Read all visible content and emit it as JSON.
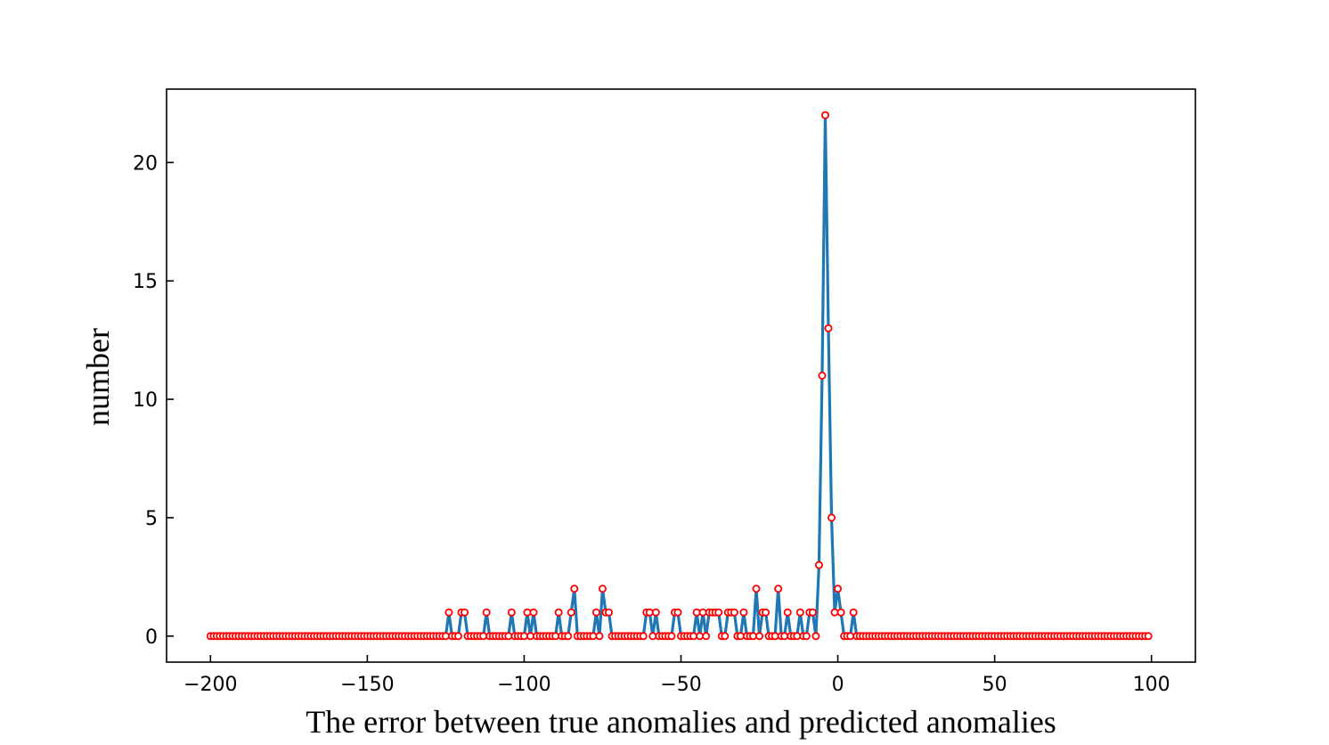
{
  "chart_data": {
    "type": "line",
    "title": "",
    "xlabel": "The error between true anomalies and predicted anomalies",
    "ylabel": "number",
    "xlim": [
      -214,
      114
    ],
    "ylim": [
      -1.1,
      23.1
    ],
    "xticks": [
      -200,
      -150,
      -100,
      -50,
      0,
      50,
      100
    ],
    "xtick_labels": [
      "−200",
      "−150",
      "−100",
      "−50",
      "0",
      "50",
      "100"
    ],
    "yticks": [
      0,
      5,
      10,
      15,
      20
    ],
    "ytick_labels": [
      "0",
      "5",
      "10",
      "15",
      "20"
    ],
    "grid": false,
    "legend": "none",
    "x_start": -200,
    "x_step": 1,
    "values": [
      0,
      0,
      0,
      0,
      0,
      0,
      0,
      0,
      0,
      0,
      0,
      0,
      0,
      0,
      0,
      0,
      0,
      0,
      0,
      0,
      0,
      0,
      0,
      0,
      0,
      0,
      0,
      0,
      0,
      0,
      0,
      0,
      0,
      0,
      0,
      0,
      0,
      0,
      0,
      0,
      0,
      0,
      0,
      0,
      0,
      0,
      0,
      0,
      0,
      0,
      0,
      0,
      0,
      0,
      0,
      0,
      0,
      0,
      0,
      0,
      0,
      0,
      0,
      0,
      0,
      0,
      0,
      0,
      0,
      0,
      0,
      0,
      0,
      0,
      0,
      0,
      1,
      0,
      0,
      0,
      1,
      1,
      0,
      0,
      0,
      0,
      0,
      0,
      1,
      0,
      0,
      0,
      0,
      0,
      0,
      0,
      1,
      0,
      0,
      0,
      0,
      1,
      0,
      1,
      0,
      0,
      0,
      0,
      0,
      0,
      0,
      1,
      0,
      0,
      0,
      1,
      2,
      0,
      0,
      0,
      0,
      0,
      0,
      1,
      0,
      2,
      1,
      1,
      0,
      0,
      0,
      0,
      0,
      0,
      0,
      0,
      0,
      0,
      0,
      1,
      1,
      0,
      1,
      0,
      0,
      0,
      0,
      0,
      1,
      1,
      0,
      0,
      0,
      0,
      0,
      1,
      0,
      1,
      0,
      1,
      1,
      1,
      1,
      0,
      0,
      1,
      1,
      1,
      0,
      0,
      1,
      0,
      0,
      0,
      2,
      0,
      1,
      1,
      0,
      0,
      0,
      2,
      0,
      0,
      1,
      0,
      0,
      0,
      1,
      0,
      0,
      1,
      1,
      0,
      3,
      11,
      22,
      13,
      5,
      1,
      2,
      1,
      0,
      0,
      0,
      1,
      0,
      0,
      0,
      0,
      0,
      0,
      0,
      0,
      0,
      0,
      0,
      0,
      0,
      0,
      0,
      0,
      0,
      0,
      0,
      0,
      0,
      0,
      0,
      0,
      0,
      0,
      0,
      0,
      0,
      0,
      0,
      0,
      0,
      0,
      0,
      0,
      0,
      0,
      0,
      0,
      0,
      0,
      0,
      0,
      0,
      0,
      0,
      0,
      0,
      0,
      0,
      0,
      0,
      0,
      0,
      0,
      0,
      0,
      0,
      0,
      0,
      0,
      0,
      0,
      0,
      0,
      0,
      0,
      0,
      0,
      0,
      0,
      0,
      0,
      0,
      0,
      0,
      0,
      0,
      0,
      0,
      0,
      0,
      0,
      0,
      0,
      0,
      0,
      0,
      0,
      0,
      0,
      0,
      0
    ],
    "line_color": "#1f77b4",
    "marker_edge_color": "#ff0000",
    "marker_face_color": "#ffffff"
  }
}
